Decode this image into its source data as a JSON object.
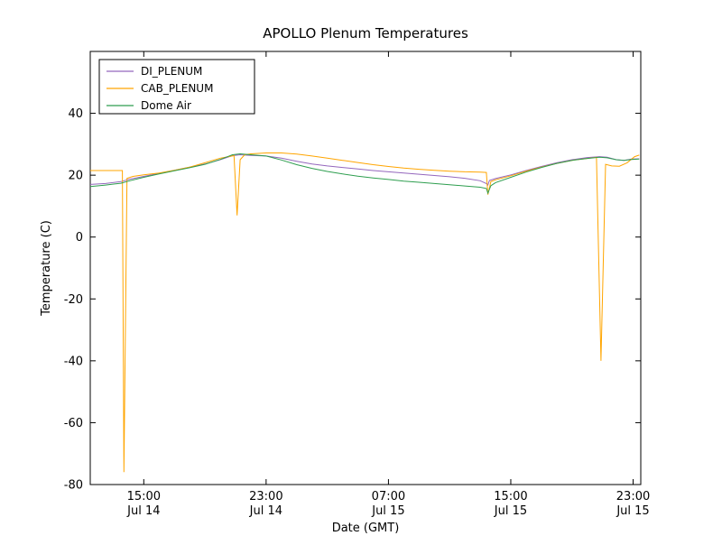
{
  "chart_data": {
    "type": "line",
    "title": "APOLLO Plenum Temperatures",
    "xlabel": "Date (GMT)",
    "ylabel": "Temperature (C)",
    "x_unit": "hours since Jul 14 00:00 GMT",
    "xlim": [
      11.5,
      47.5
    ],
    "ylim": [
      -80,
      60
    ],
    "yticks": [
      -80,
      -60,
      -40,
      -20,
      0,
      20,
      40
    ],
    "xticks": [
      {
        "value": 15,
        "time": "15:00",
        "date": "Jul 14"
      },
      {
        "value": 23,
        "time": "23:00",
        "date": "Jul 14"
      },
      {
        "value": 31,
        "time": "07:00",
        "date": "Jul 15"
      },
      {
        "value": 39,
        "time": "15:00",
        "date": "Jul 15"
      },
      {
        "value": 47,
        "time": "23:00",
        "date": "Jul 15"
      }
    ],
    "grid": false,
    "legend_position": "upper left",
    "series": [
      {
        "name": "DI_PLENUM",
        "color": "#9467bd",
        "points": [
          [
            11.5,
            17.0
          ],
          [
            12.5,
            17.3
          ],
          [
            13.5,
            17.9
          ],
          [
            14.0,
            18.6
          ],
          [
            15.0,
            19.6
          ],
          [
            16.0,
            20.6
          ],
          [
            17.0,
            21.6
          ],
          [
            18.0,
            22.6
          ],
          [
            19.0,
            23.6
          ],
          [
            20.0,
            25.0
          ],
          [
            20.8,
            26.3
          ],
          [
            21.3,
            26.6
          ],
          [
            22.0,
            26.4
          ],
          [
            23.0,
            26.2
          ],
          [
            24.0,
            25.5
          ],
          [
            25.0,
            24.5
          ],
          [
            26.0,
            23.6
          ],
          [
            27.0,
            23.0
          ],
          [
            28.0,
            22.5
          ],
          [
            29.0,
            22.0
          ],
          [
            30.0,
            21.5
          ],
          [
            31.0,
            21.1
          ],
          [
            32.0,
            20.7
          ],
          [
            33.0,
            20.3
          ],
          [
            34.0,
            19.9
          ],
          [
            35.0,
            19.5
          ],
          [
            36.0,
            19.0
          ],
          [
            37.0,
            18.2
          ],
          [
            37.4,
            17.3
          ],
          [
            37.5,
            16.8
          ],
          [
            37.6,
            18.3
          ],
          [
            38.0,
            18.9
          ],
          [
            39.0,
            20.1
          ],
          [
            40.0,
            21.5
          ],
          [
            41.0,
            22.8
          ],
          [
            42.0,
            24.0
          ],
          [
            43.0,
            25.0
          ],
          [
            44.0,
            25.7
          ],
          [
            44.8,
            26.0
          ],
          [
            45.3,
            25.8
          ],
          [
            45.9,
            25.0
          ],
          [
            46.4,
            24.8
          ],
          [
            46.9,
            25.2
          ],
          [
            47.4,
            25.3
          ]
        ]
      },
      {
        "name": "CAB_PLENUM",
        "color": "#ffa500",
        "points": [
          [
            11.5,
            21.5
          ],
          [
            13.0,
            21.5
          ],
          [
            13.6,
            21.5
          ],
          [
            13.7,
            -76.0
          ],
          [
            13.9,
            19.0
          ],
          [
            14.3,
            19.6
          ],
          [
            15.0,
            20.1
          ],
          [
            16.0,
            20.7
          ],
          [
            17.0,
            21.6
          ],
          [
            18.0,
            22.6
          ],
          [
            19.0,
            24.0
          ],
          [
            20.0,
            25.5
          ],
          [
            20.9,
            26.3
          ],
          [
            21.1,
            7.0
          ],
          [
            21.3,
            25.0
          ],
          [
            21.6,
            26.6
          ],
          [
            22.0,
            26.9
          ],
          [
            23.0,
            27.2
          ],
          [
            24.0,
            27.2
          ],
          [
            25.0,
            26.8
          ],
          [
            26.0,
            26.2
          ],
          [
            27.0,
            25.5
          ],
          [
            28.0,
            24.8
          ],
          [
            29.0,
            24.1
          ],
          [
            30.0,
            23.4
          ],
          [
            31.0,
            22.8
          ],
          [
            32.0,
            22.3
          ],
          [
            33.0,
            21.9
          ],
          [
            34.0,
            21.6
          ],
          [
            35.0,
            21.3
          ],
          [
            36.0,
            21.1
          ],
          [
            37.0,
            21.0
          ],
          [
            37.4,
            20.9
          ],
          [
            37.5,
            13.7
          ],
          [
            37.7,
            17.9
          ],
          [
            38.0,
            18.5
          ],
          [
            39.0,
            19.8
          ],
          [
            40.0,
            21.3
          ],
          [
            41.0,
            22.6
          ],
          [
            42.0,
            23.8
          ],
          [
            43.0,
            24.8
          ],
          [
            44.0,
            25.4
          ],
          [
            44.6,
            25.8
          ],
          [
            44.9,
            -40.0
          ],
          [
            45.2,
            23.5
          ],
          [
            45.6,
            23.0
          ],
          [
            46.1,
            22.9
          ],
          [
            46.6,
            24.0
          ],
          [
            47.1,
            26.0
          ],
          [
            47.4,
            26.5
          ]
        ]
      },
      {
        "name": "Dome Air",
        "color": "#2e9e4f",
        "points": [
          [
            11.5,
            16.3
          ],
          [
            12.5,
            16.8
          ],
          [
            13.5,
            17.4
          ],
          [
            14.0,
            18.1
          ],
          [
            15.0,
            19.3
          ],
          [
            16.0,
            20.4
          ],
          [
            17.0,
            21.4
          ],
          [
            18.0,
            22.4
          ],
          [
            19.0,
            23.5
          ],
          [
            20.0,
            25.1
          ],
          [
            20.8,
            26.6
          ],
          [
            21.3,
            26.9
          ],
          [
            22.0,
            26.6
          ],
          [
            23.0,
            26.2
          ],
          [
            24.0,
            24.9
          ],
          [
            25.0,
            23.4
          ],
          [
            26.0,
            22.2
          ],
          [
            27.0,
            21.2
          ],
          [
            28.0,
            20.4
          ],
          [
            29.0,
            19.7
          ],
          [
            30.0,
            19.1
          ],
          [
            31.0,
            18.6
          ],
          [
            32.0,
            18.1
          ],
          [
            33.0,
            17.7
          ],
          [
            34.0,
            17.3
          ],
          [
            35.0,
            16.9
          ],
          [
            36.0,
            16.5
          ],
          [
            37.0,
            16.1
          ],
          [
            37.4,
            15.7
          ],
          [
            37.5,
            14.2
          ],
          [
            37.7,
            16.6
          ],
          [
            38.0,
            17.6
          ],
          [
            39.0,
            19.3
          ],
          [
            40.0,
            21.0
          ],
          [
            41.0,
            22.5
          ],
          [
            42.0,
            23.8
          ],
          [
            43.0,
            24.8
          ],
          [
            44.0,
            25.4
          ],
          [
            44.8,
            25.8
          ],
          [
            45.3,
            25.6
          ],
          [
            45.9,
            25.0
          ],
          [
            46.4,
            24.8
          ],
          [
            46.9,
            25.1
          ],
          [
            47.4,
            25.2
          ]
        ]
      }
    ]
  }
}
